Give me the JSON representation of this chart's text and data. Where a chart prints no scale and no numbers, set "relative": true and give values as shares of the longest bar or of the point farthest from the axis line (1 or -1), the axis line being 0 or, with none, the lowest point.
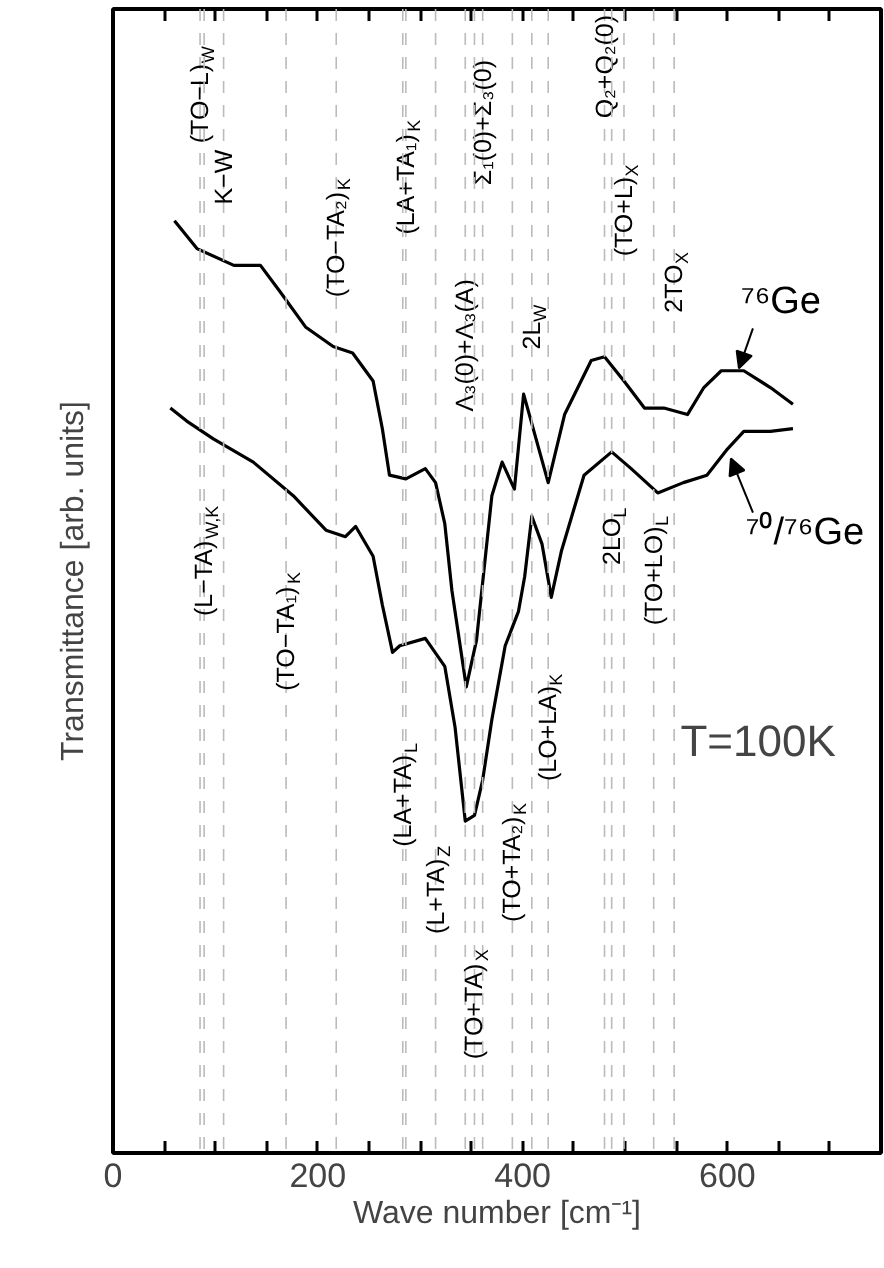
{
  "chart_data": {
    "type": "line",
    "relative": true,
    "xlabel": "Wave number [cm⁻¹]",
    "ylabel": "Transmittance [arb. units]",
    "xlim": [
      0,
      750
    ],
    "xticks": [
      0,
      {
        "value": 50,
        "label": null
      },
      {
        "value": 100,
        "label": null
      },
      {
        "value": 150,
        "label": null
      },
      200,
      {
        "value": 250,
        "label": null
      },
      {
        "value": 300,
        "label": null
      },
      {
        "value": 350,
        "label": null
      },
      400,
      {
        "value": 450,
        "label": null
      },
      {
        "value": 500,
        "label": null
      },
      {
        "value": 550,
        "label": null
      },
      600,
      {
        "value": 650,
        "label": null
      },
      {
        "value": 700,
        "label": null
      }
    ],
    "grid": false,
    "marker": "none",
    "line_style": "solid",
    "series": [
      {
        "name": "⁷⁶Ge",
        "color": "#000000",
        "x": [
          60,
          82,
          118,
          144,
          163,
          188,
          215,
          234,
          254,
          263,
          270,
          286,
          305,
          315,
          324,
          331,
          345,
          355,
          370,
          380,
          392,
          401,
          425,
          441,
          467,
          480,
          499,
          519,
          538,
          561,
          577,
          594,
          616,
          642,
          664
        ],
        "values": [
          1.0,
          0.97,
          0.952,
          0.952,
          0.924,
          0.886,
          0.865,
          0.858,
          0.828,
          0.777,
          0.727,
          0.723,
          0.734,
          0.719,
          0.675,
          0.603,
          0.5,
          0.55,
          0.705,
          0.741,
          0.712,
          0.814,
          0.719,
          0.792,
          0.85,
          0.854,
          0.828,
          0.799,
          0.799,
          0.792,
          0.821,
          0.839,
          0.839,
          0.821,
          0.803
        ]
      },
      {
        "name": "⁷⁰/⁷⁶Ge",
        "color": "#000000",
        "x": [
          56,
          72,
          98,
          137,
          176,
          208,
          227,
          237,
          254,
          263,
          273,
          280,
          305,
          324,
          334,
          344,
          353,
          361,
          370,
          383,
          396,
          402,
          409,
          419,
          428,
          438,
          460,
          487,
          506,
          532,
          557,
          580,
          600,
          616,
          642,
          664
        ],
        "values": [
          0.799,
          0.785,
          0.766,
          0.741,
          0.705,
          0.668,
          0.661,
          0.672,
          0.64,
          0.588,
          0.537,
          0.544,
          0.552,
          0.522,
          0.457,
          0.356,
          0.362,
          0.4,
          0.465,
          0.544,
          0.581,
          0.618,
          0.683,
          0.653,
          0.596,
          0.646,
          0.727,
          0.752,
          0.734,
          0.708,
          0.719,
          0.727,
          0.755,
          0.774,
          0.774,
          0.777
        ]
      }
    ],
    "ref_lines": [
      {
        "axis": "x",
        "value": 85,
        "label": "(TO−L)$_{W}$",
        "color": "#bbbbbb",
        "line_style": "dashed"
      },
      {
        "axis": "x",
        "value": 108,
        "label": "K−W",
        "color": "#bbbbbb",
        "line_style": "dashed"
      },
      {
        "axis": "x",
        "value": 218,
        "label": "(TO−TA₂)$_{K}$",
        "color": "#bbbbbb",
        "line_style": "dashed"
      },
      {
        "axis": "x",
        "value": 286,
        "label": "(LA+TA₁)$_{K}$",
        "color": "#bbbbbb",
        "line_style": "dashed"
      },
      {
        "axis": "x",
        "value": 344,
        "label": "Λ₃(0)+Λ₃(A)",
        "color": "#bbbbbb",
        "line_style": "dashed"
      },
      {
        "axis": "x",
        "value": 361,
        "label": "Σ₁(0)+Σ₃(0)",
        "color": "#bbbbbb",
        "line_style": "dashed"
      },
      {
        "axis": "x",
        "value": 409,
        "label": "2L$_{W}$",
        "color": "#bbbbbb",
        "line_style": "dashed"
      },
      {
        "axis": "x",
        "value": 480,
        "label": "Q₂+Q₂(0)",
        "color": "#bbbbbb",
        "line_style": "dashed"
      },
      {
        "axis": "x",
        "value": 499,
        "label": "(TO+L)$_{X}$",
        "color": "#bbbbbb",
        "line_style": "dashed"
      },
      {
        "axis": "x",
        "value": 548,
        "label": "2TO$_{X}$",
        "color": "#bbbbbb",
        "line_style": "dashed"
      },
      {
        "axis": "x",
        "value": 89,
        "label": "(L−TA)$_{W,K}$",
        "color": "#bbbbbb",
        "line_style": "dashed"
      },
      {
        "axis": "x",
        "value": 169,
        "label": "(TO−TA₁)$_{K}$",
        "color": "#bbbbbb",
        "line_style": "dashed"
      },
      {
        "axis": "x",
        "value": 283,
        "label": "(LA+TA)$_{L}$",
        "color": "#bbbbbb",
        "line_style": "dashed"
      },
      {
        "axis": "x",
        "value": 315,
        "label": "(L+TA)$_{Z}$",
        "color": "#bbbbbb",
        "line_style": "dashed"
      },
      {
        "axis": "x",
        "value": 353,
        "label": "(TO+TA)$_{X}$",
        "color": "#bbbbbb",
        "line_style": "dashed"
      },
      {
        "axis": "x",
        "value": 390,
        "label": "(TO+TA₂)$_{K}$",
        "color": "#bbbbbb",
        "line_style": "dashed"
      },
      {
        "axis": "x",
        "value": 425,
        "label": "(LO+LA)$_{K}$",
        "color": "#bbbbbb",
        "line_style": "dashed"
      },
      {
        "axis": "x",
        "value": 487,
        "label": "2LO$_{L}$",
        "color": "#bbbbbb",
        "line_style": "dashed"
      },
      {
        "axis": "x",
        "value": 528,
        "label": "(TO+LO)$_{L}$",
        "color": "#bbbbbb",
        "line_style": "dashed"
      }
    ],
    "annotations": [
      "T=100K"
    ]
  }
}
